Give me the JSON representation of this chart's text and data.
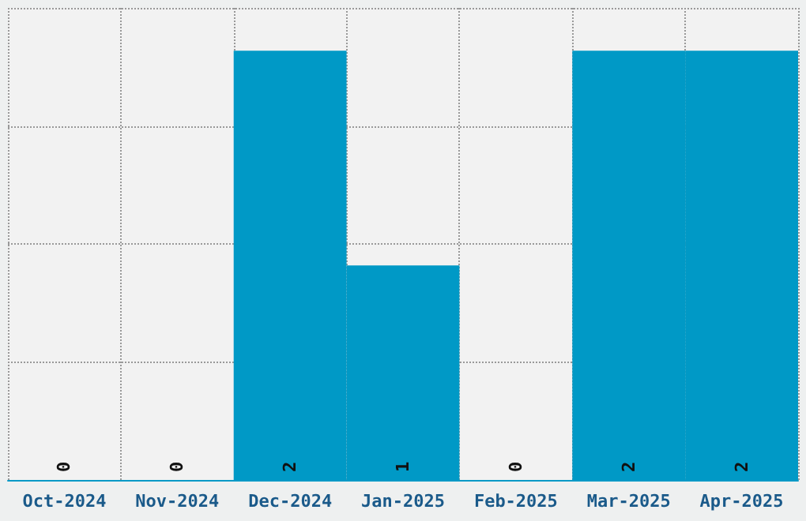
{
  "chart_data": {
    "type": "bar",
    "categories": [
      "Oct-2024",
      "Nov-2024",
      "Dec-2024",
      "Jan-2025",
      "Feb-2025",
      "Mar-2025",
      "Apr-2025"
    ],
    "values": [
      0,
      0,
      2,
      1,
      0,
      2,
      2
    ],
    "color": "#0099c6",
    "ylim": [
      0,
      2.2
    ],
    "yticks": [
      {
        "value": 0,
        "label": null
      },
      {
        "value": 0.55,
        "label": null
      },
      {
        "value": 1.1,
        "label": null
      },
      {
        "value": 1.65,
        "label": null
      },
      {
        "value": 2.2,
        "label": null
      }
    ],
    "tick_labels": "x",
    "grid": true,
    "data_labels": true
  }
}
